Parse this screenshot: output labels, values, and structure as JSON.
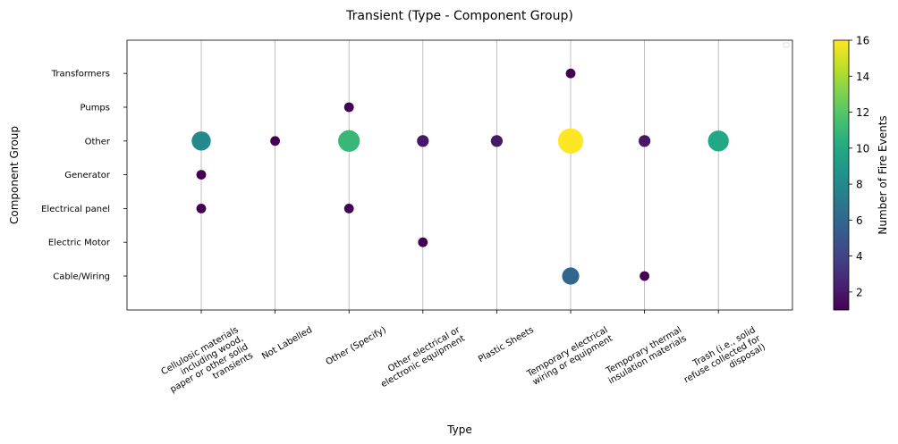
{
  "chart_data": {
    "type": "scatter",
    "title": "Transient (Type - Component Group)",
    "xlabel": "Type",
    "ylabel": "Component Group",
    "colorbar_label": "Number of Fire Events",
    "colormap": "viridis",
    "color_range": [
      1,
      16
    ],
    "colorbar_ticks": [
      2,
      4,
      6,
      8,
      10,
      12,
      14,
      16
    ],
    "grid": "x-only",
    "categories_x": [
      [
        "Cellulosic materials",
        "including wood,",
        "paper or other solid",
        "transients"
      ],
      [
        "Not Labelled"
      ],
      [
        "Other (Specify)"
      ],
      [
        "Other electrical or",
        "electronic equipment"
      ],
      [
        "Plastic Sheets"
      ],
      [
        "Temporary electrical",
        "wiring or equipment"
      ],
      [
        "Temporary thermal",
        "insulation materials"
      ],
      [
        "Trash (i.e., solid",
        "refuse collected for",
        "disposal)"
      ]
    ],
    "categories_y": [
      "Cable/Wiring",
      "Electric Motor",
      "Electrical panel",
      "Generator",
      "Other",
      "Pumps",
      "Transformers"
    ],
    "points": [
      {
        "x": 0,
        "y": "Other",
        "count": 8
      },
      {
        "x": 0,
        "y": "Generator",
        "count": 1
      },
      {
        "x": 0,
        "y": "Electrical panel",
        "count": 1
      },
      {
        "x": 1,
        "y": "Other",
        "count": 1
      },
      {
        "x": 2,
        "y": "Pumps",
        "count": 1
      },
      {
        "x": 2,
        "y": "Other",
        "count": 11
      },
      {
        "x": 2,
        "y": "Electrical panel",
        "count": 1
      },
      {
        "x": 3,
        "y": "Other",
        "count": 2
      },
      {
        "x": 3,
        "y": "Electric Motor",
        "count": 1
      },
      {
        "x": 4,
        "y": "Other",
        "count": 2
      },
      {
        "x": 5,
        "y": "Transformers",
        "count": 1
      },
      {
        "x": 5,
        "y": "Other",
        "count": 16
      },
      {
        "x": 5,
        "y": "Cable/Wiring",
        "count": 6
      },
      {
        "x": 6,
        "y": "Other",
        "count": 2
      },
      {
        "x": 6,
        "y": "Cable/Wiring",
        "count": 1
      },
      {
        "x": 7,
        "y": "Other",
        "count": 10
      }
    ]
  }
}
